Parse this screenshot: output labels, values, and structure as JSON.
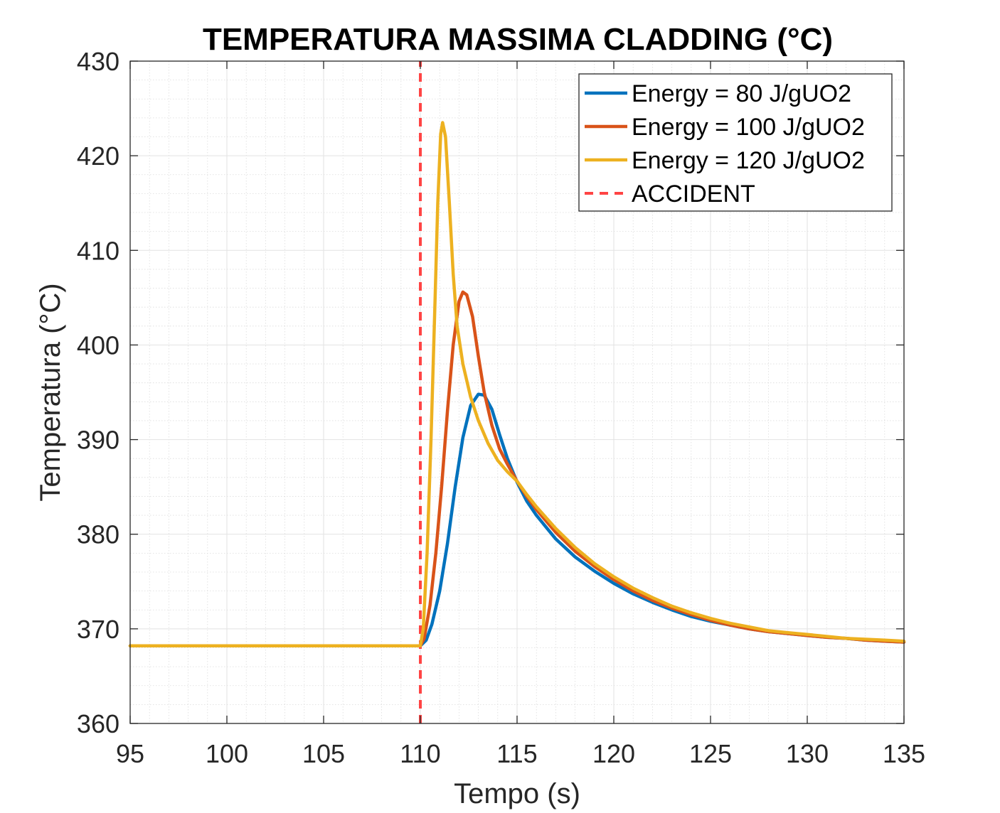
{
  "chart_data": {
    "type": "line",
    "title": "TEMPERATURA MASSIMA CLADDING (°C)",
    "xlabel": "Tempo (s)",
    "ylabel": "Temperatura (°C)",
    "xlim": [
      95,
      135
    ],
    "ylim": [
      360,
      430
    ],
    "xticks": [
      95,
      100,
      105,
      110,
      115,
      120,
      125,
      130,
      135
    ],
    "yticks": [
      360,
      370,
      380,
      390,
      400,
      410,
      420,
      430
    ],
    "grid": true,
    "minor_grid": true,
    "legend_position": "top-right",
    "series": [
      {
        "name": "Energy = 80 J/gUO2",
        "color": "#0072BD",
        "style": "solid",
        "points": [
          [
            95,
            368.2
          ],
          [
            110,
            368.2
          ],
          [
            110.3,
            368.8
          ],
          [
            110.6,
            370.5
          ],
          [
            111.0,
            374.0
          ],
          [
            111.4,
            379.0
          ],
          [
            111.8,
            385.0
          ],
          [
            112.2,
            390.2
          ],
          [
            112.6,
            393.6
          ],
          [
            113.0,
            394.8
          ],
          [
            113.3,
            394.7
          ],
          [
            113.7,
            393.2
          ],
          [
            114.1,
            390.5
          ],
          [
            114.5,
            388.0
          ],
          [
            115.0,
            385.5
          ],
          [
            115.5,
            383.5
          ],
          [
            116.0,
            382.0
          ],
          [
            117.0,
            379.5
          ],
          [
            118.0,
            377.6
          ],
          [
            119.0,
            376.1
          ],
          [
            120.0,
            374.8
          ],
          [
            121.0,
            373.7
          ],
          [
            122.0,
            372.8
          ],
          [
            123.0,
            372.0
          ],
          [
            124.0,
            371.3
          ],
          [
            125.0,
            370.8
          ],
          [
            126.0,
            370.4
          ],
          [
            127.0,
            370.0
          ],
          [
            128.0,
            369.7
          ],
          [
            129.0,
            369.5
          ],
          [
            130.0,
            369.3
          ],
          [
            131.0,
            369.1
          ],
          [
            132.0,
            369.0
          ],
          [
            133.0,
            368.8
          ],
          [
            134.0,
            368.7
          ],
          [
            135.0,
            368.6
          ]
        ]
      },
      {
        "name": "Energy = 100 J/gUO2",
        "color": "#D95319",
        "style": "solid",
        "points": [
          [
            95,
            368.2
          ],
          [
            110,
            368.2
          ],
          [
            110.2,
            369.0
          ],
          [
            110.5,
            372.5
          ],
          [
            110.8,
            378.0
          ],
          [
            111.1,
            385.0
          ],
          [
            111.4,
            393.0
          ],
          [
            111.7,
            400.0
          ],
          [
            112.0,
            404.6
          ],
          [
            112.2,
            405.6
          ],
          [
            112.4,
            405.3
          ],
          [
            112.7,
            403.0
          ],
          [
            113.0,
            398.8
          ],
          [
            113.3,
            395.0
          ],
          [
            113.7,
            391.5
          ],
          [
            114.1,
            389.0
          ],
          [
            114.5,
            387.4
          ],
          [
            115.0,
            385.6
          ],
          [
            115.5,
            384.0
          ],
          [
            116.0,
            382.6
          ],
          [
            117.0,
            380.2
          ],
          [
            118.0,
            378.2
          ],
          [
            119.0,
            376.6
          ],
          [
            120.0,
            375.2
          ],
          [
            121.0,
            374.0
          ],
          [
            122.0,
            373.0
          ],
          [
            123.0,
            372.2
          ],
          [
            124.0,
            371.5
          ],
          [
            125.0,
            370.9
          ],
          [
            126.0,
            370.4
          ],
          [
            127.0,
            370.0
          ],
          [
            128.0,
            369.7
          ],
          [
            129.0,
            369.5
          ],
          [
            130.0,
            369.3
          ],
          [
            131.0,
            369.1
          ],
          [
            132.0,
            369.0
          ],
          [
            133.0,
            368.8
          ],
          [
            134.0,
            368.7
          ],
          [
            135.0,
            368.6
          ]
        ]
      },
      {
        "name": "Energy = 120 J/gUO2",
        "color": "#EDB120",
        "style": "solid",
        "points": [
          [
            95,
            368.2
          ],
          [
            110,
            368.2
          ],
          [
            110.15,
            370.0
          ],
          [
            110.35,
            378.0
          ],
          [
            110.55,
            390.0
          ],
          [
            110.75,
            404.0
          ],
          [
            110.9,
            415.0
          ],
          [
            111.05,
            422.3
          ],
          [
            111.15,
            423.5
          ],
          [
            111.3,
            422.0
          ],
          [
            111.5,
            415.0
          ],
          [
            111.7,
            407.5
          ],
          [
            111.9,
            402.0
          ],
          [
            112.2,
            398.0
          ],
          [
            112.6,
            394.5
          ],
          [
            113.0,
            392.0
          ],
          [
            113.5,
            389.6
          ],
          [
            114.0,
            387.8
          ],
          [
            114.5,
            386.6
          ],
          [
            115.0,
            385.6
          ],
          [
            115.5,
            384.2
          ],
          [
            116.0,
            382.9
          ],
          [
            117.0,
            380.6
          ],
          [
            118.0,
            378.6
          ],
          [
            119.0,
            376.9
          ],
          [
            120.0,
            375.5
          ],
          [
            121.0,
            374.3
          ],
          [
            122.0,
            373.3
          ],
          [
            123.0,
            372.4
          ],
          [
            124.0,
            371.7
          ],
          [
            125.0,
            371.1
          ],
          [
            126.0,
            370.6
          ],
          [
            127.0,
            370.2
          ],
          [
            128.0,
            369.8
          ],
          [
            129.0,
            369.6
          ],
          [
            130.0,
            369.4
          ],
          [
            131.0,
            369.2
          ],
          [
            132.0,
            369.0
          ],
          [
            133.0,
            368.9
          ],
          [
            134.0,
            368.8
          ],
          [
            135.0,
            368.7
          ]
        ]
      },
      {
        "name": "ACCIDENT",
        "color": "#FF4444",
        "style": "dashed",
        "points": [
          [
            110,
            360
          ],
          [
            110,
            430
          ]
        ]
      }
    ]
  }
}
